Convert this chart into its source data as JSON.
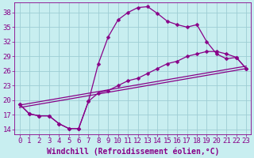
{
  "xlabel": "Windchill (Refroidissement éolien,°C)",
  "xlim": [
    -0.5,
    23.5
  ],
  "ylim": [
    13.0,
    40.0
  ],
  "xticks": [
    0,
    1,
    2,
    3,
    4,
    5,
    6,
    7,
    8,
    9,
    10,
    11,
    12,
    13,
    14,
    15,
    16,
    17,
    18,
    19,
    20,
    21,
    22,
    23
  ],
  "yticks": [
    14,
    17,
    20,
    23,
    26,
    29,
    32,
    35,
    38
  ],
  "bg_color": "#c8eef0",
  "grid_color": "#9ecdd4",
  "line_color": "#880088",
  "lines": [
    {
      "x": [
        0,
        1,
        2,
        3,
        4,
        5,
        6,
        7,
        8,
        9,
        10,
        11,
        12,
        13,
        14,
        15,
        16,
        17,
        18,
        19,
        20,
        21,
        22,
        23
      ],
      "y": [
        19.2,
        17.2,
        16.8,
        16.8,
        15.2,
        14.2,
        14.2,
        19.8,
        27.5,
        33.0,
        36.5,
        38.0,
        39.0,
        39.2,
        37.8,
        36.2,
        35.5,
        35.0,
        35.5,
        32.0,
        29.5,
        28.5,
        28.8,
        26.5
      ],
      "has_markers": true
    },
    {
      "x": [
        0,
        1,
        2,
        3,
        4,
        5,
        6,
        7,
        8,
        9,
        10,
        11,
        12,
        13,
        14,
        15,
        16,
        17,
        18,
        19,
        20,
        21,
        22,
        23
      ],
      "y": [
        19.2,
        17.2,
        16.8,
        16.8,
        15.2,
        14.2,
        14.2,
        19.8,
        21.5,
        22.0,
        23.0,
        24.0,
        24.5,
        25.5,
        26.5,
        27.5,
        28.0,
        29.0,
        29.5,
        30.0,
        30.0,
        29.5,
        28.8,
        26.5
      ],
      "has_markers": true
    },
    {
      "x": [
        0,
        23
      ],
      "y": [
        18.5,
        26.5
      ],
      "has_markers": false
    },
    {
      "x": [
        0,
        23
      ],
      "y": [
        19.0,
        27.0
      ],
      "has_markers": false
    }
  ],
  "font_color": "#880088",
  "font_family": "monospace",
  "font_size_ticks": 6.5,
  "font_size_xlabel": 7.0,
  "marker": "D",
  "markersize": 2.5,
  "linewidth": 0.9
}
